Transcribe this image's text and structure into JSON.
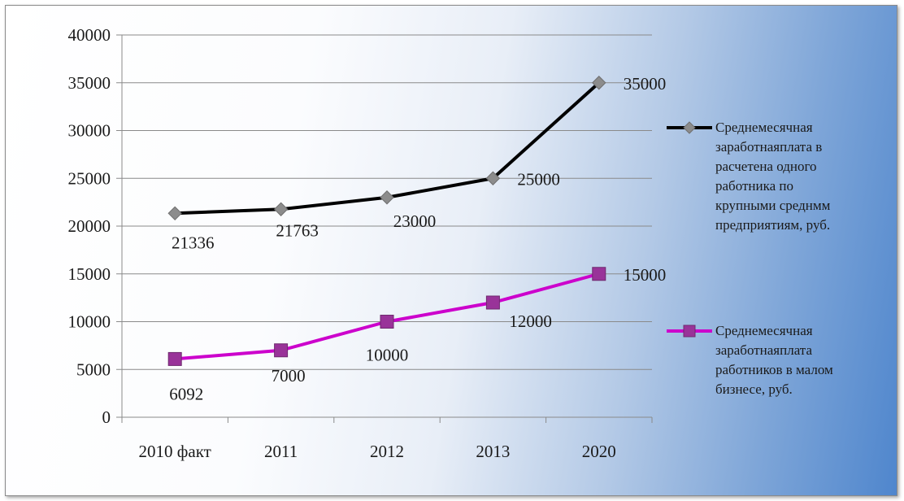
{
  "chart_data": {
    "type": "line",
    "categories": [
      "2010 факт",
      "2011",
      "2012",
      "2013",
      "2020"
    ],
    "ylim": [
      0,
      40000
    ],
    "yticks": [
      0,
      5000,
      10000,
      15000,
      20000,
      25000,
      30000,
      35000,
      40000
    ],
    "grid": true,
    "legend_position": "right",
    "series": [
      {
        "name": "Среднемесячная заработнаяплата в расчетена одного работника по крупным и средним предприятиям, руб.",
        "legend_lines": [
          "Среднемесячная",
          "заработнаяплата в",
          "расчетена одного",
          "работника по",
          "крупными среднмм",
          "предприятиям, руб."
        ],
        "values": [
          21336,
          21763,
          23000,
          25000,
          35000
        ],
        "labels": [
          "21336",
          "21763",
          "23000",
          "25000",
          "35000"
        ],
        "color": "#000000",
        "marker": "diamond",
        "marker_color": "#8c8c8c"
      },
      {
        "name": "Среднемесячная заработнаяплата работников в малом бизнесе, руб.",
        "legend_lines": [
          "Среднемесячная",
          "заработнаяплата",
          "работников в малом",
          "бизнесе, руб."
        ],
        "values": [
          6092,
          7000,
          10000,
          12000,
          15000
        ],
        "labels": [
          "6092",
          "7000",
          "10000",
          "12000",
          "15000"
        ],
        "color": "#cc00cc",
        "marker": "square",
        "marker_color": "#993399"
      }
    ]
  }
}
